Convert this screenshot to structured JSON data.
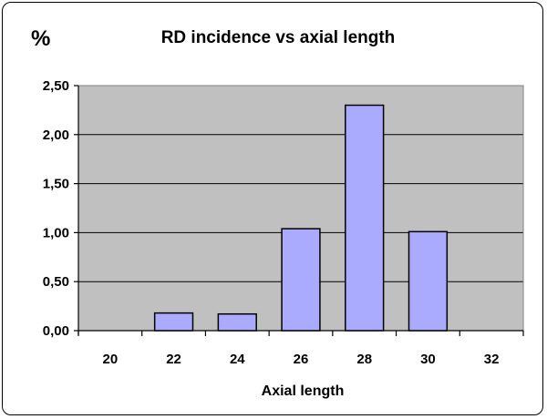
{
  "chart_data": {
    "type": "bar",
    "title": "RD incidence vs axial length",
    "unit_label": "%",
    "xlabel": "Axial length",
    "ylabel": "",
    "categories": [
      "20",
      "22",
      "24",
      "26",
      "28",
      "30",
      "32"
    ],
    "values": [
      0,
      0.18,
      0.17,
      1.04,
      2.3,
      1.01,
      0
    ],
    "ylim": [
      0,
      2.5
    ],
    "yticks": [
      "0,00",
      "0,50",
      "1,00",
      "1,50",
      "2,00",
      "2,50"
    ],
    "ytick_values": [
      0,
      0.5,
      1.0,
      1.5,
      2.0,
      2.5
    ],
    "grid": true,
    "legend": "none",
    "colors": {
      "plot_background": "#c0c0c0",
      "bar_fill": "#aaaaff",
      "bar_stroke": "#000000",
      "gridline": "#000000"
    }
  }
}
